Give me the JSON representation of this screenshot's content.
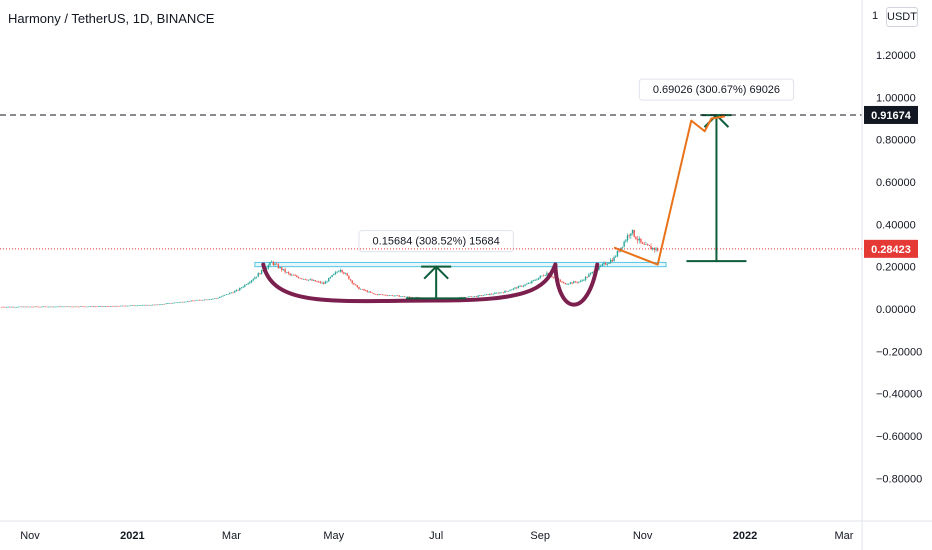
{
  "header": {
    "title": "Harmony / TetherUS, 1D, BINANCE",
    "currency": "USDT",
    "top_truncated_label": "1"
  },
  "colors": {
    "price_line": "#e53935",
    "target_line": "#131722",
    "measure": "#0d5c3a",
    "projection": "#e8731a",
    "pattern": "#7b1f4e",
    "resistance": "#56c6e6",
    "candles_up": "#26a69a",
    "candles_down": "#ef5350"
  },
  "chart_data": {
    "type": "candlestick",
    "title": "Harmony / TetherUS, 1D, BINANCE",
    "ylim": [
      -0.9,
      1.4
    ],
    "y_ticks": [
      1.2,
      1.0,
      0.8,
      0.6,
      0.4,
      0.2,
      0.0,
      -0.2,
      -0.4,
      -0.6,
      -0.8
    ],
    "y_tick_labels": [
      "1.20000",
      "1.00000",
      "0.80000",
      "0.60000",
      "0.40000",
      "0.20000",
      "0.00000",
      "−0.20000",
      "−0.40000",
      "−0.60000",
      "−0.80000"
    ],
    "x_ticks": [
      {
        "date": "2020-11-01",
        "label": "Nov"
      },
      {
        "date": "2021-01-01",
        "label": "2021"
      },
      {
        "date": "2021-03-01",
        "label": "Mar"
      },
      {
        "date": "2021-05-01",
        "label": "May"
      },
      {
        "date": "2021-07-01",
        "label": "Jul"
      },
      {
        "date": "2021-09-01",
        "label": "Sep"
      },
      {
        "date": "2021-11-01",
        "label": "Nov"
      },
      {
        "date": "2022-01-01",
        "label": "2022"
      },
      {
        "date": "2022-03-01",
        "label": "Mar"
      }
    ],
    "price_series": {
      "dates": [
        "2020-10-15",
        "2020-11-15",
        "2020-12-15",
        "2021-01-15",
        "2021-02-01",
        "2021-02-20",
        "2021-03-05",
        "2021-03-15",
        "2021-03-25",
        "2021-04-05",
        "2021-04-15",
        "2021-04-25",
        "2021-05-05",
        "2021-05-15",
        "2021-05-25",
        "2021-06-10",
        "2021-06-25",
        "2021-07-10",
        "2021-07-25",
        "2021-08-10",
        "2021-08-25",
        "2021-09-05",
        "2021-09-15",
        "2021-09-25",
        "2021-10-05",
        "2021-10-15",
        "2021-10-25",
        "2021-11-01",
        "2021-11-10"
      ],
      "values": [
        0.01,
        0.011,
        0.012,
        0.02,
        0.035,
        0.05,
        0.09,
        0.15,
        0.22,
        0.16,
        0.14,
        0.12,
        0.19,
        0.1,
        0.07,
        0.06,
        0.05,
        0.05,
        0.06,
        0.08,
        0.12,
        0.17,
        0.12,
        0.13,
        0.19,
        0.24,
        0.37,
        0.3,
        0.28
      ]
    },
    "last_price": 0.28423,
    "last_price_label": "0.28423",
    "target_price": 0.91674,
    "target_price_label": "0.91674",
    "measurements": [
      {
        "label": "0.15684 (308.52%) 15684",
        "from_date": "2021-07-01",
        "from_value": 0.05,
        "to_value": 0.2
      },
      {
        "label": "0.69026 (300.67%) 69026",
        "from_date": "2021-12-15",
        "from_value": 0.226,
        "to_value": 0.916
      }
    ],
    "resistance_zone": {
      "from_date": "2021-03-15",
      "to_date": "2021-11-15",
      "low": 0.2,
      "high": 0.22
    },
    "cup_pattern": {
      "start_date": "2021-03-20",
      "bottom_date": "2021-07-01",
      "end_date": "2021-09-10",
      "bottom_value": 0.04,
      "rim_value": 0.21
    },
    "projection_path": {
      "dates": [
        "2021-10-15",
        "2021-11-10",
        "2021-11-30",
        "2021-12-08",
        "2021-12-12",
        "2021-12-20"
      ],
      "values": [
        0.29,
        0.21,
        0.89,
        0.84,
        0.9,
        0.91
      ]
    }
  }
}
